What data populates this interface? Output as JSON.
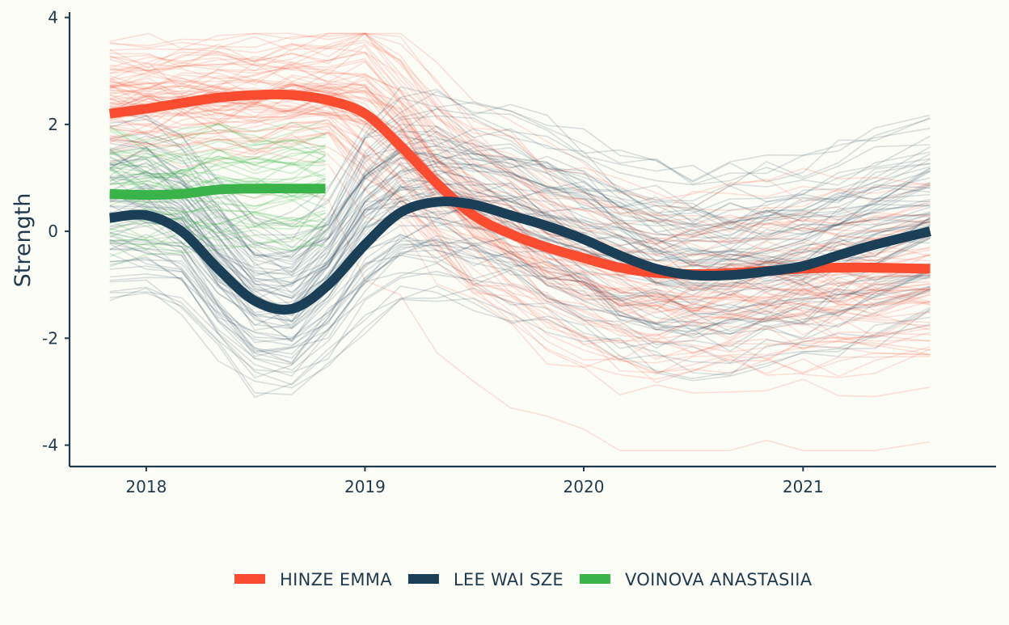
{
  "chart_data": {
    "type": "line",
    "title": "",
    "xlabel": "",
    "ylabel": "Strength",
    "xlim": [
      "2017-08-26",
      "2021-11-19"
    ],
    "ylim": [
      -4.4,
      4.1
    ],
    "x_ticks": [
      {
        "date": "2018-01-01",
        "label": "2018"
      },
      {
        "date": "2019-01-01",
        "label": "2019"
      },
      {
        "date": "2020-01-01",
        "label": "2020"
      },
      {
        "date": "2021-01-01",
        "label": "2021"
      }
    ],
    "y_ticks": [
      {
        "value": -4,
        "label": "-4"
      },
      {
        "value": -2,
        "label": "-2"
      },
      {
        "value": 0,
        "label": "0"
      },
      {
        "value": 2,
        "label": "2"
      },
      {
        "value": 4,
        "label": "4"
      }
    ],
    "grid": false,
    "legend_position": "bottom",
    "series": [
      {
        "name": "HINZE EMMA",
        "color": "#f94c30",
        "trend": {
          "x": [
            "2017-11-01",
            "2018-01-05",
            "2018-03-01",
            "2018-05-01",
            "2018-07-01",
            "2018-09-01",
            "2018-11-01",
            "2019-01-01",
            "2019-03-01",
            "2019-05-01",
            "2019-07-01",
            "2019-09-01",
            "2019-11-01",
            "2020-01-01",
            "2020-03-01",
            "2020-05-01",
            "2020-07-01",
            "2020-09-01",
            "2020-11-01",
            "2021-01-01",
            "2021-03-01",
            "2021-05-01",
            "2021-08-01"
          ],
          "y": [
            2.2,
            2.3,
            2.4,
            2.5,
            2.55,
            2.55,
            2.45,
            2.2,
            1.6,
            0.9,
            0.3,
            -0.05,
            -0.3,
            -0.5,
            -0.68,
            -0.78,
            -0.8,
            -0.78,
            -0.74,
            -0.7,
            -0.68,
            -0.68,
            -0.7
          ]
        },
        "band_center": [
          2.6,
          2.6,
          2.6,
          2.6,
          2.6,
          2.7,
          2.7,
          2.6,
          2.0,
          1.2,
          0.6,
          0.2,
          -0.3,
          -0.6,
          -0.8,
          -0.9,
          -0.9,
          -0.85,
          -0.8,
          -0.8,
          -0.8,
          -0.8,
          -0.7
        ],
        "band_spread": 0.9,
        "band_spread_after_2019": 1.5
      },
      {
        "name": "LEE WAI SZE",
        "color": "#1a3f56",
        "trend": {
          "x": [
            "2017-11-01",
            "2018-01-01",
            "2018-03-01",
            "2018-05-01",
            "2018-07-01",
            "2018-09-01",
            "2018-11-01",
            "2019-01-01",
            "2019-03-01",
            "2019-05-01",
            "2019-07-01",
            "2019-09-01",
            "2019-11-01",
            "2020-01-01",
            "2020-03-01",
            "2020-05-01",
            "2020-07-01",
            "2020-09-01",
            "2020-11-01",
            "2021-01-01",
            "2021-03-01",
            "2021-05-01",
            "2021-08-01"
          ],
          "y": [
            0.25,
            0.3,
            0.0,
            -0.7,
            -1.3,
            -1.45,
            -1.0,
            -0.25,
            0.35,
            0.55,
            0.5,
            0.3,
            0.1,
            -0.15,
            -0.45,
            -0.7,
            -0.82,
            -0.82,
            -0.75,
            -0.65,
            -0.45,
            -0.25,
            0.0
          ]
        },
        "band_center": [
          0.3,
          0.3,
          0.0,
          -0.8,
          -1.5,
          -1.6,
          -1.0,
          0.0,
          0.5,
          0.5,
          0.4,
          0.2,
          0.0,
          -0.3,
          -0.6,
          -0.8,
          -0.9,
          -0.9,
          -0.8,
          -0.7,
          -0.5,
          -0.3,
          0.0
        ],
        "band_spread": 1.2,
        "band_spread_after_2019": 1.4
      },
      {
        "name": "VOINOVA ANASTASIIA",
        "color": "#3ab44a",
        "trend": {
          "x": [
            "2017-11-01",
            "2018-01-01",
            "2018-03-01",
            "2018-05-01",
            "2018-07-01",
            "2018-09-01",
            "2018-10-27"
          ],
          "y": [
            0.7,
            0.68,
            0.7,
            0.78,
            0.8,
            0.8,
            0.8
          ]
        },
        "band_center": [
          0.8,
          0.8,
          0.8,
          0.9,
          0.9,
          0.9,
          0.9
        ],
        "band_spread": 0.9,
        "band_spread_after_2019": 0.9
      }
    ]
  }
}
